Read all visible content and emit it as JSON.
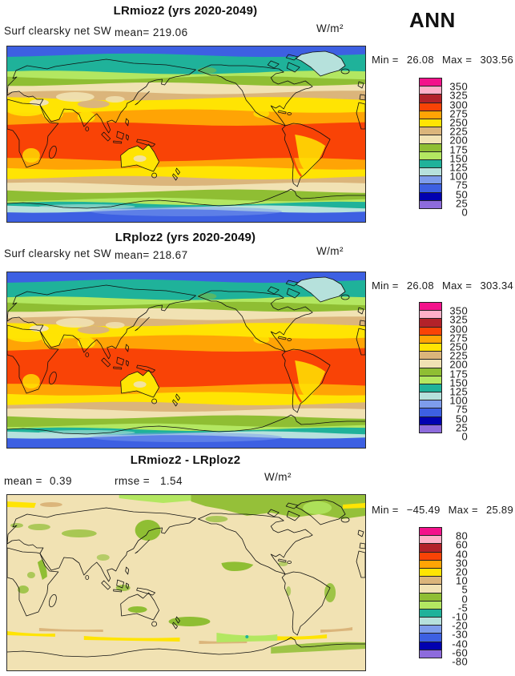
{
  "season_label": "ANN",
  "colors": {
    "magenta": "#F3128B",
    "pink": "#FFB0C8",
    "darkred": "#B3222A",
    "redorange": "#F94306",
    "orange": "#FFA405",
    "yellow": "#FFE403",
    "tan": "#DBB57B",
    "lttan": "#F1E2B3",
    "olive": "#8FBE33",
    "ltgreen": "#B3E761",
    "teal": "#1FB29A",
    "ltcyan": "#B6E1DC",
    "ltblue": "#7E9DEB",
    "blue": "#3D60E2",
    "navy": "#0101B0",
    "purple": "#8D6BDC"
  },
  "colorbar_color_keys": [
    "magenta",
    "pink",
    "darkred",
    "redorange",
    "orange",
    "yellow",
    "tan",
    "lttan",
    "olive",
    "ltgreen",
    "teal",
    "ltcyan",
    "ltblue",
    "blue",
    "navy",
    "purple"
  ],
  "panels": [
    {
      "title": "LRmioz2 (yrs 2020-2049)",
      "field_label": "Surf clearsky net SW",
      "mean_label": "mean=",
      "mean_value": "219.06",
      "units": "W/m²",
      "min_label": "Min =",
      "min_value": "26.08",
      "max_label": "Max =",
      "max_value": "303.56",
      "colorbar_labels": [
        "350",
        "325",
        "300",
        "275",
        "250",
        "225",
        "200",
        "175",
        "150",
        "125",
        "100",
        "75",
        "50",
        "25",
        "0"
      ]
    },
    {
      "title": "LRploz2 (yrs 2020-2049)",
      "field_label": "Surf clearsky net SW",
      "mean_label": "mean=",
      "mean_value": "218.67",
      "units": "W/m²",
      "min_label": "Min =",
      "min_value": "26.08",
      "max_label": "Max =",
      "max_value": "303.34",
      "colorbar_labels": [
        "350",
        "325",
        "300",
        "275",
        "250",
        "225",
        "200",
        "175",
        "150",
        "125",
        "100",
        "75",
        "50",
        "25",
        "0"
      ]
    },
    {
      "title": "LRmioz2 - LRploz2",
      "mean_label": "mean =",
      "mean_value": "0.39",
      "rmse_label": "rmse =",
      "rmse_value": "1.54",
      "units": "W/m²",
      "min_label": "Min =",
      "min_value": "−45.49",
      "max_label": "Max =",
      "max_value": "25.89",
      "colorbar_labels": [
        "80",
        "60",
        "40",
        "30",
        "20",
        "10",
        "5",
        "0",
        "-5",
        "-10",
        "-20",
        "-30",
        "-40",
        "-60",
        "-80"
      ]
    }
  ],
  "chart_data": [
    {
      "type": "heatmap",
      "subtype": "global-latlon-contour-map",
      "title": "LRmioz2 (yrs 2020-2049)",
      "variable": "Surf clearsky net SW",
      "season": "ANN",
      "units": "W/m²",
      "mean": 219.06,
      "min": 26.08,
      "max": 303.56,
      "projection": "cylindrical equidistant, lon 0-360E (Pacific centered), lat 90N-90S",
      "contour_levels": [
        0,
        25,
        50,
        75,
        100,
        125,
        150,
        175,
        200,
        225,
        250,
        275,
        300,
        325,
        350
      ],
      "legend_position": "right",
      "bands": [
        [
          0.0,
          "blue"
        ],
        [
          0.05,
          "teal"
        ],
        [
          0.148,
          "ltgreen"
        ],
        [
          0.178,
          "olive"
        ],
        [
          0.215,
          "lttan"
        ],
        [
          0.262,
          "tan"
        ],
        [
          0.298,
          "yellow"
        ],
        [
          0.368,
          "orange"
        ],
        [
          0.442,
          "redorange"
        ],
        [
          0.645,
          "orange"
        ],
        [
          0.692,
          "yellow"
        ],
        [
          0.748,
          "tan"
        ],
        [
          0.785,
          "lttan"
        ],
        [
          0.825,
          "olive"
        ],
        [
          0.872,
          "ltgreen"
        ],
        [
          0.895,
          "teal"
        ],
        [
          0.916,
          "ltcyan"
        ],
        [
          0.938,
          "blue"
        ]
      ]
    },
    {
      "type": "heatmap",
      "subtype": "global-latlon-contour-map",
      "title": "LRploz2 (yrs 2020-2049)",
      "variable": "Surf clearsky net SW",
      "season": "ANN",
      "units": "W/m²",
      "mean": 218.67,
      "min": 26.08,
      "max": 303.34,
      "projection": "cylindrical equidistant, lon 0-360E (Pacific centered), lat 90N-90S",
      "contour_levels": [
        0,
        25,
        50,
        75,
        100,
        125,
        150,
        175,
        200,
        225,
        250,
        275,
        300,
        325,
        350
      ],
      "legend_position": "right",
      "bands": [
        [
          0.0,
          "blue"
        ],
        [
          0.05,
          "teal"
        ],
        [
          0.148,
          "ltgreen"
        ],
        [
          0.178,
          "olive"
        ],
        [
          0.215,
          "lttan"
        ],
        [
          0.262,
          "tan"
        ],
        [
          0.298,
          "yellow"
        ],
        [
          0.368,
          "orange"
        ],
        [
          0.442,
          "redorange"
        ],
        [
          0.645,
          "orange"
        ],
        [
          0.692,
          "yellow"
        ],
        [
          0.748,
          "tan"
        ],
        [
          0.785,
          "lttan"
        ],
        [
          0.825,
          "olive"
        ],
        [
          0.872,
          "ltgreen"
        ],
        [
          0.895,
          "teal"
        ],
        [
          0.916,
          "ltcyan"
        ],
        [
          0.938,
          "blue"
        ]
      ]
    },
    {
      "type": "heatmap",
      "subtype": "global-latlon-difference-map",
      "title": "LRmioz2 - LRploz2",
      "variable": "Surf clearsky net SW difference",
      "season": "ANN",
      "units": "W/m²",
      "mean": 0.39,
      "rmse": 1.54,
      "min": -45.49,
      "max": 25.89,
      "projection": "cylindrical equidistant, lon 0-360E (Pacific centered), lat 90N-90S",
      "contour_levels": [
        -80,
        -60,
        -40,
        -30,
        -20,
        -10,
        -5,
        0,
        5,
        10,
        20,
        30,
        40,
        60,
        80
      ],
      "legend_position": "right",
      "bands": [
        [
          0.0,
          "lttan"
        ]
      ],
      "notes": "Background mostly 0 to 5 W/m²; negative (-5 to -10, olive/light-green) patches over Arctic, Greenland, N Canada, Sea of Okhotsk, scattered oceans; positive (5-20, tan/yellow) streaks near 55-60S and far N Atlantic"
    }
  ]
}
